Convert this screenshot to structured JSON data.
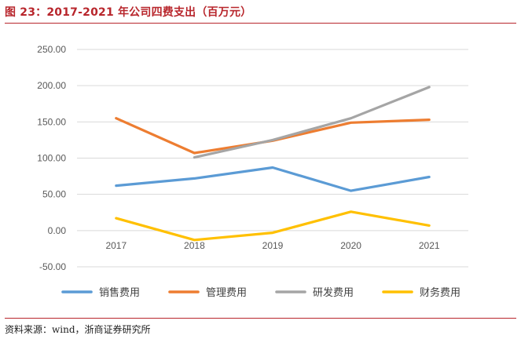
{
  "figure": {
    "title": "图 23：2017-2021 年公司四费支出（百万元）",
    "source": "资料来源：wind，浙商证券研究所"
  },
  "colors": {
    "title": "#b8262c",
    "grid": "#d9d9d9",
    "tick": "#595959"
  },
  "chart_data": {
    "type": "line",
    "title": "图 23：2017-2021 年公司四费支出（百万元）",
    "xlabel": "",
    "ylabel": "",
    "categories": [
      "2017",
      "2018",
      "2019",
      "2020",
      "2021"
    ],
    "ylim": [
      -50,
      250
    ],
    "yticks": [
      "-50.00",
      "0.00",
      "50.00",
      "100.00",
      "150.00",
      "200.00",
      "250.00"
    ],
    "grid": true,
    "legend_position": "bottom",
    "series": [
      {
        "name": "销售费用",
        "color": "#5b9bd5",
        "values": [
          62,
          72,
          87,
          55,
          74
        ]
      },
      {
        "name": "管理费用",
        "color": "#ed7d31",
        "values": [
          155,
          107,
          124,
          149,
          153
        ]
      },
      {
        "name": "研发费用",
        "color": "#a5a5a5",
        "values": [
          null,
          101,
          125,
          155,
          198
        ]
      },
      {
        "name": "财务费用",
        "color": "#ffc000",
        "values": [
          17,
          -13,
          -3,
          26,
          7
        ]
      }
    ]
  }
}
